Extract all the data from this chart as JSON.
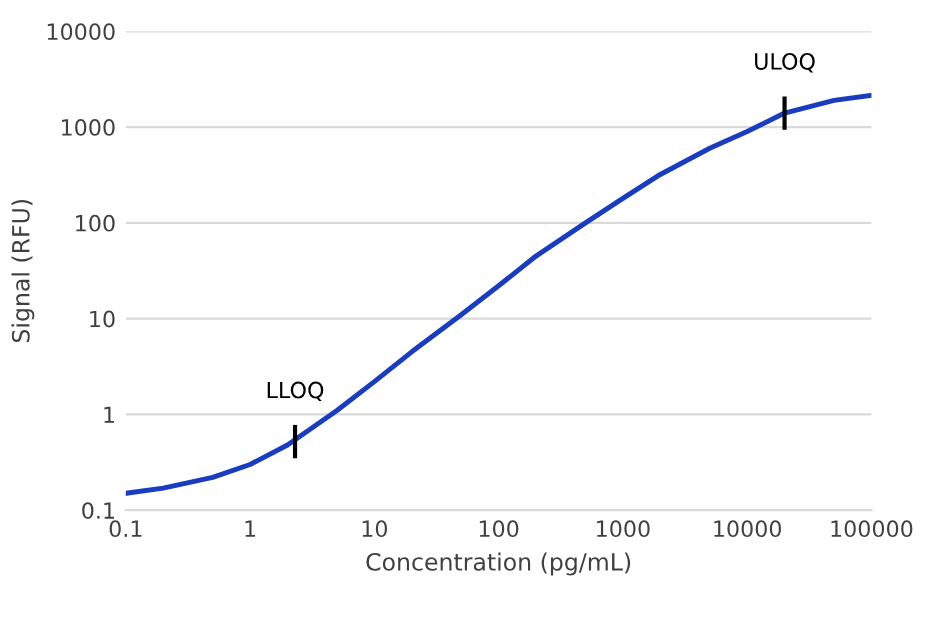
{
  "chart_data": {
    "type": "line",
    "xlabel": "Concentration (pg/mL)",
    "ylabel": "Signal (RFU)",
    "log": "xy",
    "x": [
      0.1,
      0.2,
      0.5,
      1,
      2,
      5,
      10,
      20,
      50,
      100,
      200,
      500,
      1000,
      2000,
      5000,
      10000,
      20000,
      50000,
      100000
    ],
    "series": [
      {
        "color": "#1a3cbf",
        "values": [
          0.15,
          0.17,
          0.22,
          0.3,
          0.48,
          1.1,
          2.2,
          4.5,
          11,
          22,
          45,
          100,
          180,
          320,
          600,
          900,
          1400,
          1900,
          2150
        ]
      }
    ],
    "annotations": [
      {
        "text": "LLOQ",
        "x": 2.3,
        "y": 0.52
      },
      {
        "text": "ULOQ",
        "x": 20000,
        "y": 1400
      }
    ],
    "xlim": [
      0.1,
      100000
    ],
    "xticks": [
      0.1,
      1,
      10,
      100,
      1000,
      10000,
      100000
    ],
    "ylim": [
      0.1,
      10000
    ],
    "yticks": [
      0.1,
      1,
      10,
      100,
      1000,
      10000
    ],
    "grid": "y",
    "marker": "none",
    "line_style": "solid",
    "legend": false
  }
}
